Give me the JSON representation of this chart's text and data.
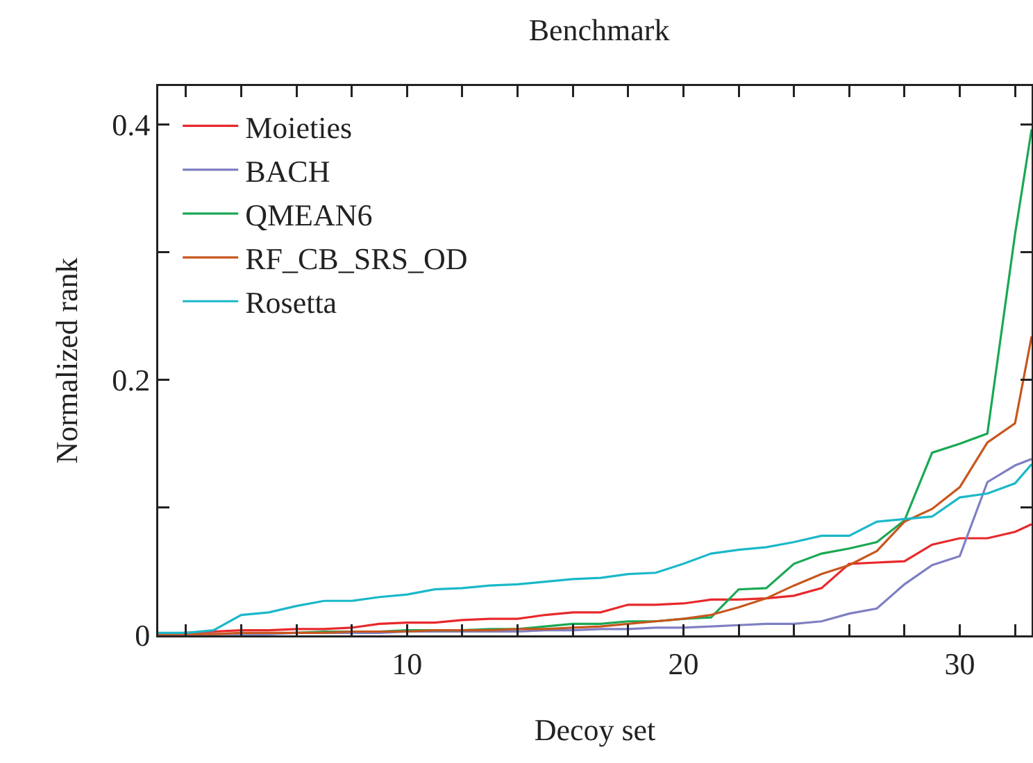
{
  "chart_data": {
    "type": "line",
    "title": "Benchmark",
    "xlabel": "Decoy set",
    "ylabel": "Normalized rank",
    "x": [
      1,
      2,
      3,
      4,
      5,
      6,
      7,
      8,
      9,
      10,
      11,
      12,
      13,
      14,
      15,
      16,
      17,
      18,
      19,
      20,
      21,
      22,
      23,
      24,
      25,
      26,
      27,
      28,
      29,
      30,
      31,
      32,
      32.6
    ],
    "series": [
      {
        "name": "Moieties",
        "color": "#e8282b",
        "values": [
          0.001,
          0.002,
          0.003,
          0.004,
          0.004,
          0.005,
          0.005,
          0.006,
          0.009,
          0.01,
          0.01,
          0.012,
          0.013,
          0.013,
          0.016,
          0.018,
          0.018,
          0.024,
          0.024,
          0.025,
          0.028,
          0.028,
          0.029,
          0.031,
          0.037,
          0.056,
          0.057,
          0.058,
          0.071,
          0.076,
          0.076,
          0.081,
          0.087
        ]
      },
      {
        "name": "BACH",
        "color": "#7f7fc4",
        "values": [
          0.001,
          0.001,
          0.001,
          0.001,
          0.001,
          0.002,
          0.002,
          0.002,
          0.002,
          0.003,
          0.003,
          0.003,
          0.003,
          0.003,
          0.004,
          0.004,
          0.005,
          0.005,
          0.006,
          0.006,
          0.007,
          0.008,
          0.009,
          0.009,
          0.011,
          0.017,
          0.021,
          0.04,
          0.055,
          0.062,
          0.12,
          0.133,
          0.138
        ]
      },
      {
        "name": "QMEAN6",
        "color": "#1aa854",
        "values": [
          null,
          null,
          null,
          null,
          null,
          0.002,
          0.003,
          0.003,
          0.003,
          0.004,
          0.004,
          0.004,
          0.005,
          0.005,
          0.007,
          0.009,
          0.009,
          0.011,
          0.011,
          0.013,
          0.014,
          0.036,
          0.037,
          0.056,
          0.064,
          0.068,
          0.073,
          0.09,
          0.143,
          0.15,
          0.158,
          0.314,
          0.396
        ]
      },
      {
        "name": "RF_CB_SRS_OD",
        "color": "#c8561d",
        "values": [
          0.001,
          0.001,
          0.001,
          0.002,
          0.002,
          0.002,
          0.002,
          0.003,
          0.003,
          0.003,
          0.004,
          0.004,
          0.004,
          0.005,
          0.005,
          0.006,
          0.007,
          0.009,
          0.011,
          0.013,
          0.016,
          0.022,
          0.029,
          0.039,
          0.048,
          0.055,
          0.066,
          0.089,
          0.099,
          0.116,
          0.151,
          0.166,
          0.234
        ]
      },
      {
        "name": "Rosetta",
        "color": "#1ab8c8",
        "values": [
          0.002,
          0.002,
          0.004,
          0.016,
          0.018,
          0.023,
          0.027,
          0.027,
          0.03,
          0.032,
          0.036,
          0.037,
          0.039,
          0.04,
          0.042,
          0.044,
          0.045,
          0.048,
          0.049,
          0.056,
          0.064,
          0.067,
          0.069,
          0.073,
          0.078,
          0.078,
          0.089,
          0.091,
          0.093,
          0.108,
          0.111,
          0.119,
          0.134
        ]
      }
    ],
    "xlim": [
      1,
      32.6
    ],
    "xticks": [
      {
        "value": 2,
        "label": null
      },
      {
        "value": 4,
        "label": null
      },
      {
        "value": 6,
        "label": null
      },
      {
        "value": 8,
        "label": null
      },
      10,
      {
        "value": 12,
        "label": null
      },
      {
        "value": 14,
        "label": null
      },
      {
        "value": 16,
        "label": null
      },
      {
        "value": 18,
        "label": null
      },
      20,
      {
        "value": 22,
        "label": null
      },
      {
        "value": 24,
        "label": null
      },
      {
        "value": 26,
        "label": null
      },
      {
        "value": 28,
        "label": null
      },
      30,
      {
        "value": 32,
        "label": null
      }
    ],
    "ylim": [
      0,
      0.43
    ],
    "yticks": [
      0,
      {
        "value": 0.1,
        "label": null
      },
      0.2,
      {
        "value": 0.3,
        "label": null
      },
      0.4
    ],
    "grid": false,
    "legend": "top left",
    "marker": "none",
    "line_style": "solid"
  }
}
